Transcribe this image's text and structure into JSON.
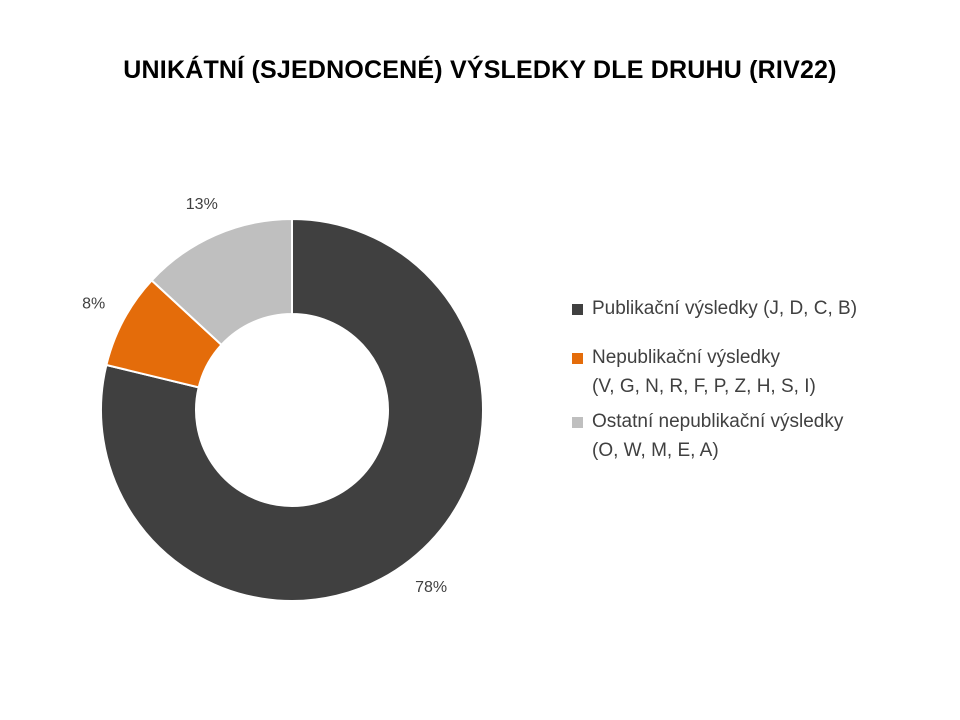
{
  "chart_data": {
    "type": "pie",
    "subtype": "donut",
    "title": "UNIKÁTNÍ (SJEDNOCENÉ) VÝSLEDKY DLE DRUHU (RIV22)",
    "legend_position": "right",
    "slices": [
      {
        "name": "Publikační výsledky (J, D, C, B)",
        "legend_lines": [
          "Publikační výsledky (J, D, C, B)"
        ],
        "value": 78,
        "label": "78%",
        "color": "#404040"
      },
      {
        "name": "Nepublikační výsledky (V, G, N, R, F, P, Z, H, S, I)",
        "legend_lines": [
          "Nepublikační výsledky",
          "(V, G, N, R, F, P, Z, H, S, I)"
        ],
        "value": 8,
        "label": "8%",
        "color": "#E46C0A"
      },
      {
        "name": "Ostatní nepublikační výsledky (O, W, M, E, A)",
        "legend_lines": [
          "Ostatní nepublikační výsledky",
          "(O, W, M, E, A)"
        ],
        "value": 13,
        "label": "13%",
        "color": "#BFBFBF"
      }
    ]
  }
}
